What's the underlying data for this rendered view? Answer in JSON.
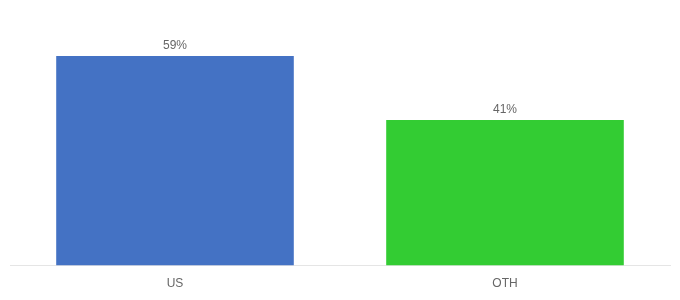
{
  "chart_data": {
    "type": "bar",
    "categories": [
      "US",
      "OTH"
    ],
    "values": [
      59,
      41
    ],
    "value_labels": [
      "59%",
      "41%"
    ],
    "colors": [
      "#4472C4",
      "#33CC33"
    ],
    "ylim": [
      0,
      68
    ],
    "grid": false,
    "data_labels": true,
    "tick_labels": "x"
  }
}
